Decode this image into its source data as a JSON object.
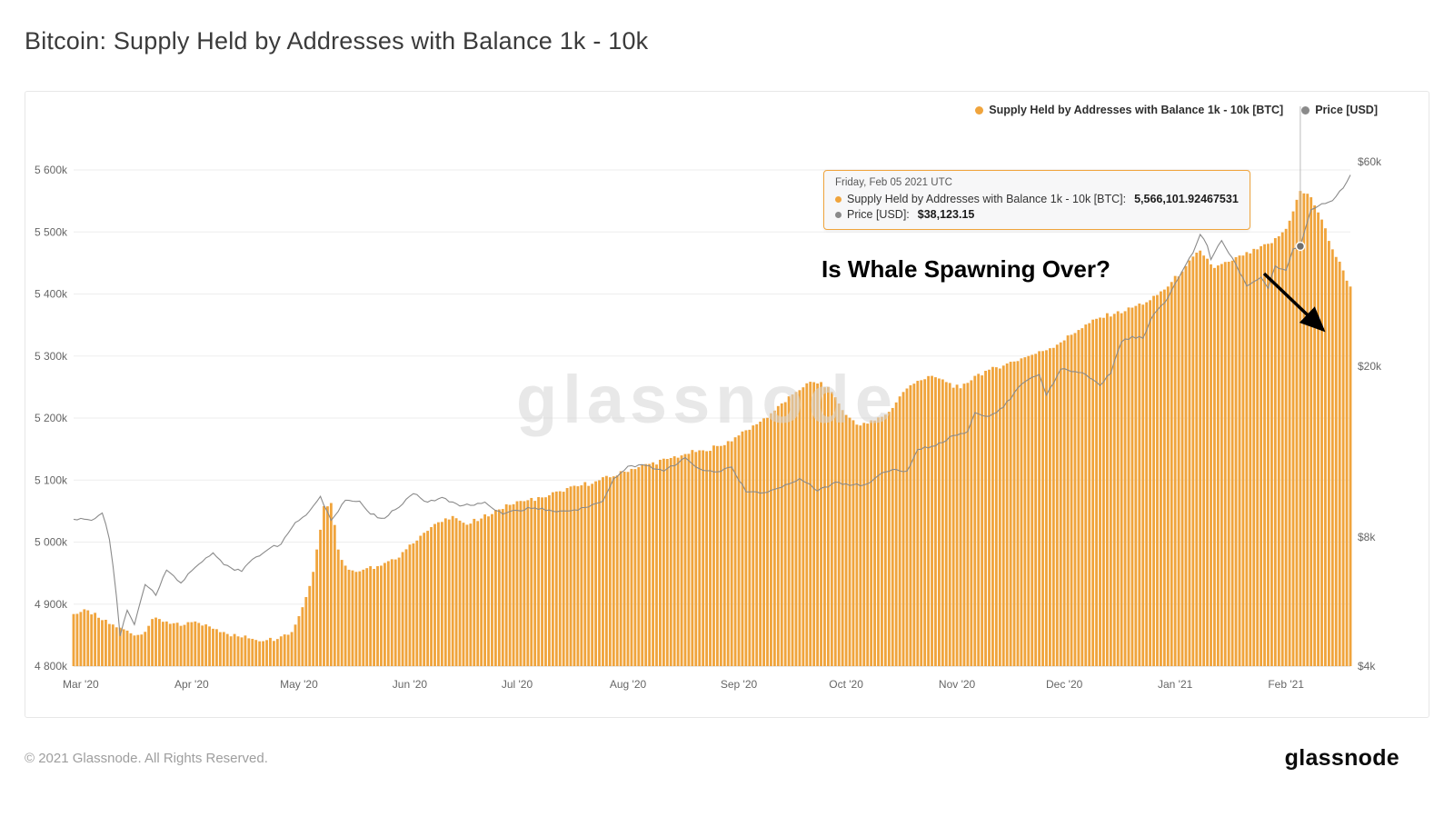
{
  "page": {
    "title": "Bitcoin: Supply Held by Addresses with Balance 1k - 10k",
    "watermark": "glassnode",
    "footer_copyright": "© 2021 Glassnode. All Rights Reserved.",
    "footer_logo": "glassnode"
  },
  "colors": {
    "accent": "#F0A43C",
    "price": "#8A8A8A",
    "grid": "#EDEDED",
    "axis_text": "#666666",
    "baseline": "#D8D8D8",
    "crosshair": "#BBBBBB",
    "hover_dot": "#6E6E6E"
  },
  "legend": {
    "supply_label": "Supply Held by Addresses with Balance 1k - 10k [BTC]",
    "price_label": "Price [USD]"
  },
  "tooltip": {
    "date": "Friday, Feb 05 2021 UTC",
    "supply_label": "Supply Held by Addresses with Balance 1k - 10k [BTC]:",
    "supply_value": "5,566,101.92467531",
    "price_label": "Price [USD]:",
    "price_value": "$38,123.15"
  },
  "annotation": {
    "text": "Is Whale Spawning Over?"
  },
  "chart_data": {
    "type": "bar",
    "title": "Bitcoin: Supply Held by Addresses with Balance 1k - 10k",
    "x_range": {
      "start": "2020-02-28",
      "end": "2021-02-19"
    },
    "x_ticks": [
      {
        "label": "Mar '20",
        "date": "2020-03-01"
      },
      {
        "label": "Apr '20",
        "date": "2020-04-01"
      },
      {
        "label": "May '20",
        "date": "2020-05-01"
      },
      {
        "label": "Jun '20",
        "date": "2020-06-01"
      },
      {
        "label": "Jul '20",
        "date": "2020-07-01"
      },
      {
        "label": "Aug '20",
        "date": "2020-08-01"
      },
      {
        "label": "Sep '20",
        "date": "2020-09-01"
      },
      {
        "label": "Oct '20",
        "date": "2020-10-01"
      },
      {
        "label": "Nov '20",
        "date": "2020-11-01"
      },
      {
        "label": "Dec '20",
        "date": "2020-12-01"
      },
      {
        "label": "Jan '21",
        "date": "2021-01-01"
      },
      {
        "label": "Feb '21",
        "date": "2021-02-01"
      }
    ],
    "y_left": {
      "unit": "BTC",
      "min": 4800000,
      "max": 5600000,
      "scale": "linear",
      "ticks": [
        {
          "label": "4 800k",
          "value": 4800000
        },
        {
          "label": "4 900k",
          "value": 4900000
        },
        {
          "label": "5 000k",
          "value": 5000000
        },
        {
          "label": "5 100k",
          "value": 5100000
        },
        {
          "label": "5 200k",
          "value": 5200000
        },
        {
          "label": "5 300k",
          "value": 5300000
        },
        {
          "label": "5 400k",
          "value": 5400000
        },
        {
          "label": "5 500k",
          "value": 5500000
        },
        {
          "label": "5 600k",
          "value": 5600000
        }
      ]
    },
    "y_right": {
      "unit": "USD",
      "min": 4000,
      "max": 60000,
      "scale": "log",
      "ticks": [
        {
          "label": "$4k",
          "value": 4000
        },
        {
          "label": "$8k",
          "value": 8000
        },
        {
          "label": "$20k",
          "value": 20000
        },
        {
          "label": "$60k",
          "value": 60000
        }
      ]
    },
    "hover": {
      "date": "2021-02-05",
      "supply_btc": 5566101.92467531,
      "price_usd": 38123.15
    },
    "series": [
      {
        "name": "Supply Held by Addresses with Balance 1k - 10k [BTC]",
        "type": "bar",
        "axis": "left",
        "color": "#F0A43C",
        "keypoints": [
          [
            "2020-02-28",
            4884000
          ],
          [
            "2020-03-03",
            4890000
          ],
          [
            "2020-03-06",
            4878000
          ],
          [
            "2020-03-09",
            4868000
          ],
          [
            "2020-03-12",
            4862000
          ],
          [
            "2020-03-15",
            4853000
          ],
          [
            "2020-03-18",
            4851000
          ],
          [
            "2020-03-21",
            4876000
          ],
          [
            "2020-03-25",
            4872000
          ],
          [
            "2020-03-29",
            4865000
          ],
          [
            "2020-04-02",
            4872000
          ],
          [
            "2020-04-06",
            4864000
          ],
          [
            "2020-04-10",
            4855000
          ],
          [
            "2020-04-14",
            4848000
          ],
          [
            "2020-04-18",
            4844000
          ],
          [
            "2020-04-22",
            4842000
          ],
          [
            "2020-04-26",
            4848000
          ],
          [
            "2020-04-29",
            4855000
          ],
          [
            "2020-05-02",
            4895000
          ],
          [
            "2020-05-05",
            4952000
          ],
          [
            "2020-05-08",
            5058000
          ],
          [
            "2020-05-10",
            5063000
          ],
          [
            "2020-05-12",
            4988000
          ],
          [
            "2020-05-14",
            4962000
          ],
          [
            "2020-05-17",
            4952000
          ],
          [
            "2020-05-20",
            4958000
          ],
          [
            "2020-05-24",
            4962000
          ],
          [
            "2020-05-28",
            4972000
          ],
          [
            "2020-06-01",
            4996000
          ],
          [
            "2020-06-05",
            5015000
          ],
          [
            "2020-06-09",
            5032000
          ],
          [
            "2020-06-13",
            5042000
          ],
          [
            "2020-06-17",
            5028000
          ],
          [
            "2020-06-21",
            5038000
          ],
          [
            "2020-06-25",
            5052000
          ],
          [
            "2020-06-29",
            5060000
          ],
          [
            "2020-07-03",
            5066000
          ],
          [
            "2020-07-08",
            5072000
          ],
          [
            "2020-07-13",
            5082000
          ],
          [
            "2020-07-18",
            5090000
          ],
          [
            "2020-07-23",
            5098000
          ],
          [
            "2020-07-28",
            5106000
          ],
          [
            "2020-08-02",
            5118000
          ],
          [
            "2020-08-07",
            5126000
          ],
          [
            "2020-08-12",
            5134000
          ],
          [
            "2020-08-17",
            5142000
          ],
          [
            "2020-08-22",
            5148000
          ],
          [
            "2020-08-27",
            5155000
          ],
          [
            "2020-09-01",
            5172000
          ],
          [
            "2020-09-06",
            5190000
          ],
          [
            "2020-09-11",
            5212000
          ],
          [
            "2020-09-16",
            5238000
          ],
          [
            "2020-09-20",
            5256000
          ],
          [
            "2020-09-24",
            5258000
          ],
          [
            "2020-09-27",
            5242000
          ],
          [
            "2020-10-01",
            5205000
          ],
          [
            "2020-10-05",
            5188000
          ],
          [
            "2020-10-09",
            5196000
          ],
          [
            "2020-10-13",
            5210000
          ],
          [
            "2020-10-17",
            5242000
          ],
          [
            "2020-10-21",
            5260000
          ],
          [
            "2020-10-25",
            5268000
          ],
          [
            "2020-10-29",
            5258000
          ],
          [
            "2020-11-02",
            5248000
          ],
          [
            "2020-11-06",
            5268000
          ],
          [
            "2020-11-10",
            5278000
          ],
          [
            "2020-11-15",
            5288000
          ],
          [
            "2020-11-20",
            5298000
          ],
          [
            "2020-11-25",
            5308000
          ],
          [
            "2020-11-30",
            5322000
          ],
          [
            "2020-12-05",
            5342000
          ],
          [
            "2020-12-10",
            5360000
          ],
          [
            "2020-12-15",
            5368000
          ],
          [
            "2020-12-20",
            5378000
          ],
          [
            "2020-12-25",
            5390000
          ],
          [
            "2020-12-30",
            5412000
          ],
          [
            "2021-01-04",
            5445000
          ],
          [
            "2021-01-08",
            5470000
          ],
          [
            "2021-01-12",
            5442000
          ],
          [
            "2021-01-16",
            5452000
          ],
          [
            "2021-01-20",
            5462000
          ],
          [
            "2021-01-24",
            5472000
          ],
          [
            "2021-01-28",
            5482000
          ],
          [
            "2021-02-01",
            5505000
          ],
          [
            "2021-02-05",
            5566102
          ],
          [
            "2021-02-08",
            5556000
          ],
          [
            "2021-02-11",
            5520000
          ],
          [
            "2021-02-14",
            5472000
          ],
          [
            "2021-02-17",
            5438000
          ],
          [
            "2021-02-19",
            5412000
          ]
        ]
      },
      {
        "name": "Price [USD]",
        "type": "line",
        "axis": "right",
        "color": "#8A8A8A",
        "keypoints": [
          [
            "2020-02-28",
            8800
          ],
          [
            "2020-03-04",
            8750
          ],
          [
            "2020-03-07",
            9100
          ],
          [
            "2020-03-09",
            7900
          ],
          [
            "2020-03-12",
            4700
          ],
          [
            "2020-03-14",
            5400
          ],
          [
            "2020-03-16",
            5000
          ],
          [
            "2020-03-19",
            6200
          ],
          [
            "2020-03-22",
            5850
          ],
          [
            "2020-03-25",
            6700
          ],
          [
            "2020-03-29",
            6250
          ],
          [
            "2020-04-02",
            6800
          ],
          [
            "2020-04-07",
            7350
          ],
          [
            "2020-04-10",
            6900
          ],
          [
            "2020-04-15",
            6650
          ],
          [
            "2020-04-18",
            7100
          ],
          [
            "2020-04-23",
            7550
          ],
          [
            "2020-04-26",
            7700
          ],
          [
            "2020-04-30",
            8650
          ],
          [
            "2020-05-03",
            9000
          ],
          [
            "2020-05-07",
            9950
          ],
          [
            "2020-05-10",
            8750
          ],
          [
            "2020-05-14",
            9750
          ],
          [
            "2020-05-18",
            9700
          ],
          [
            "2020-05-21",
            9050
          ],
          [
            "2020-05-25",
            8850
          ],
          [
            "2020-05-30",
            9550
          ],
          [
            "2020-06-02",
            10100
          ],
          [
            "2020-06-06",
            9650
          ],
          [
            "2020-06-10",
            9900
          ],
          [
            "2020-06-15",
            9450
          ],
          [
            "2020-06-22",
            9650
          ],
          [
            "2020-06-27",
            9050
          ],
          [
            "2020-07-01",
            9230
          ],
          [
            "2020-07-06",
            9350
          ],
          [
            "2020-07-10",
            9250
          ],
          [
            "2020-07-15",
            9200
          ],
          [
            "2020-07-21",
            9400
          ],
          [
            "2020-07-25",
            9700
          ],
          [
            "2020-07-28",
            10950
          ],
          [
            "2020-08-01",
            11700
          ],
          [
            "2020-08-06",
            11750
          ],
          [
            "2020-08-11",
            11400
          ],
          [
            "2020-08-17",
            12250
          ],
          [
            "2020-08-21",
            11550
          ],
          [
            "2020-08-25",
            11350
          ],
          [
            "2020-08-30",
            11650
          ],
          [
            "2020-09-03",
            10200
          ],
          [
            "2020-09-08",
            10150
          ],
          [
            "2020-09-13",
            10450
          ],
          [
            "2020-09-18",
            10950
          ],
          [
            "2020-09-23",
            10250
          ],
          [
            "2020-09-28",
            10750
          ],
          [
            "2020-10-02",
            10550
          ],
          [
            "2020-10-07",
            10650
          ],
          [
            "2020-10-11",
            11300
          ],
          [
            "2020-10-15",
            11500
          ],
          [
            "2020-10-18",
            11400
          ],
          [
            "2020-10-21",
            12800
          ],
          [
            "2020-10-26",
            13050
          ],
          [
            "2020-10-31",
            13800
          ],
          [
            "2020-11-04",
            14100
          ],
          [
            "2020-11-06",
            15600
          ],
          [
            "2020-11-10",
            15300
          ],
          [
            "2020-11-14",
            16050
          ],
          [
            "2020-11-18",
            17800
          ],
          [
            "2020-11-21",
            18650
          ],
          [
            "2020-11-24",
            19150
          ],
          [
            "2020-11-26",
            17150
          ],
          [
            "2020-11-30",
            19700
          ],
          [
            "2020-12-03",
            19450
          ],
          [
            "2020-12-07",
            19150
          ],
          [
            "2020-12-11",
            18050
          ],
          [
            "2020-12-14",
            19250
          ],
          [
            "2020-12-17",
            22800
          ],
          [
            "2020-12-20",
            23500
          ],
          [
            "2020-12-23",
            23250
          ],
          [
            "2020-12-26",
            26450
          ],
          [
            "2020-12-30",
            28900
          ],
          [
            "2021-01-02",
            32200
          ],
          [
            "2021-01-06",
            36800
          ],
          [
            "2021-01-08",
            40600
          ],
          [
            "2021-01-10",
            38200
          ],
          [
            "2021-01-11",
            35500
          ],
          [
            "2021-01-14",
            39300
          ],
          [
            "2021-01-17",
            35800
          ],
          [
            "2021-01-21",
            30800
          ],
          [
            "2021-01-25",
            32300
          ],
          [
            "2021-01-27",
            30400
          ],
          [
            "2021-01-29",
            34300
          ],
          [
            "2021-02-01",
            33500
          ],
          [
            "2021-02-03",
            37600
          ],
          [
            "2021-02-05",
            38123
          ],
          [
            "2021-02-08",
            46400
          ],
          [
            "2021-02-11",
            47900
          ],
          [
            "2021-02-14",
            48700
          ],
          [
            "2021-02-17",
            52100
          ],
          [
            "2021-02-19",
            55900
          ]
        ]
      }
    ]
  }
}
